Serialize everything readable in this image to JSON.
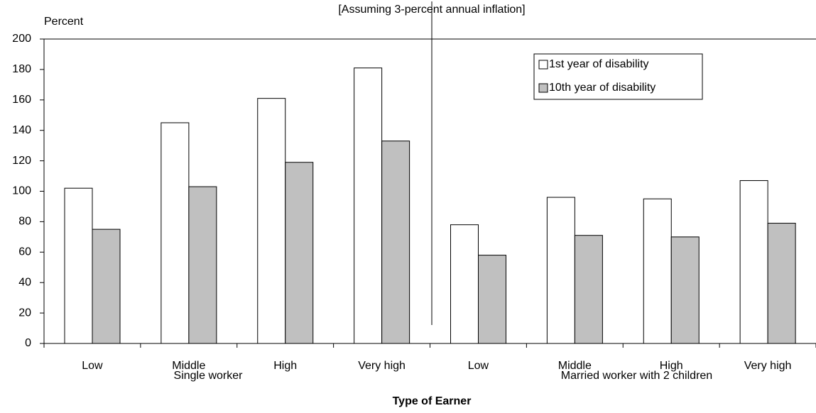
{
  "chart_data": {
    "type": "bar",
    "subtitle": "[Assuming 3-percent annual inflation]",
    "y_label": "Percent",
    "x_label": "Type of Earner",
    "categories": [
      "Low",
      "Middle",
      "High",
      "Very high",
      "Low",
      "Middle",
      "High",
      "Very high"
    ],
    "groups": [
      "Single worker",
      "Married worker with 2 children"
    ],
    "series": [
      {
        "name": "1st year of disability",
        "color": "#ffffff",
        "values": [
          102,
          145,
          161,
          181,
          78,
          96,
          95,
          107
        ]
      },
      {
        "name": "10th year of disability",
        "color": "#c0c0c0",
        "values": [
          75,
          103,
          119,
          133,
          58,
          71,
          70,
          79
        ]
      }
    ],
    "ylim": [
      0,
      200
    ],
    "yticks": [
      0,
      20,
      40,
      60,
      80,
      100,
      120,
      140,
      160,
      180,
      200
    ],
    "legend": "upper right"
  }
}
